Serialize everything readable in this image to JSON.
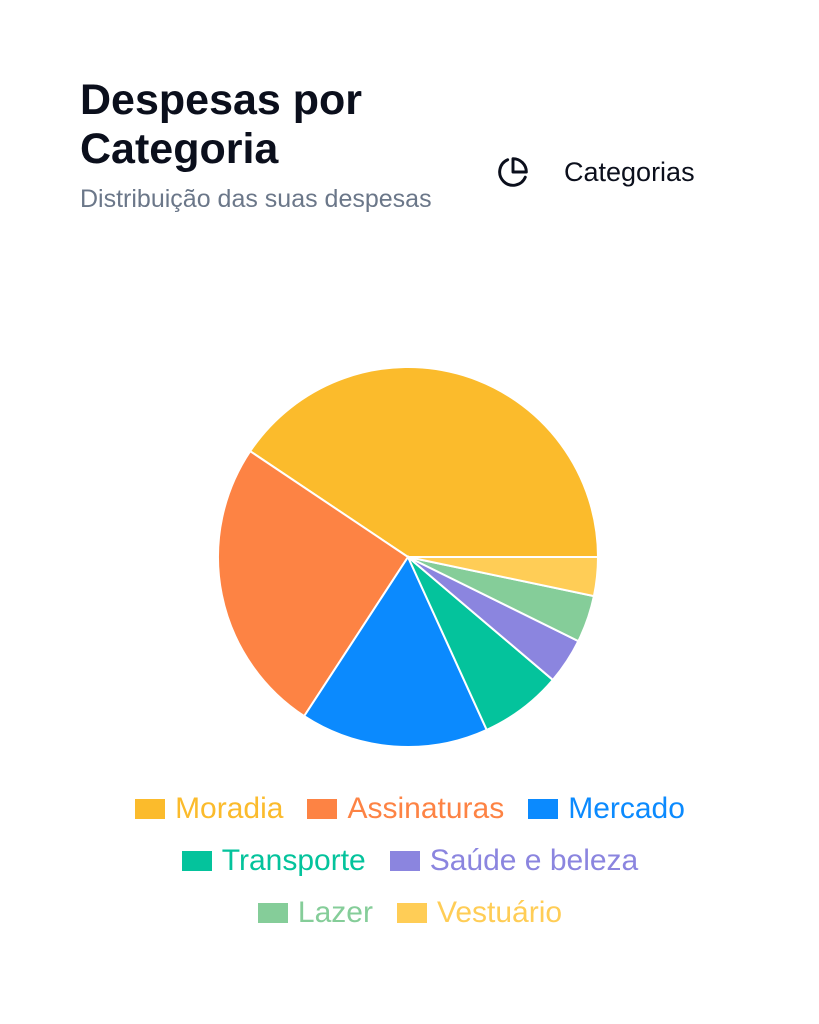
{
  "header": {
    "title": "Despesas por Categoria",
    "subtitle": "Distribuição das suas despesas"
  },
  "toggle": {
    "icon": "pie-chart-icon",
    "label": "Categorias"
  },
  "chart_data": {
    "type": "pie",
    "title": "",
    "categories": [
      "Moradia",
      "Assinaturas",
      "Mercado",
      "Transporte",
      "Saúde e beleza",
      "Lazer",
      "Vestuário"
    ],
    "values": [
      40.6,
      25.2,
      16.0,
      7.0,
      3.9,
      4.0,
      3.3
    ],
    "colors": [
      "#fbbb2c",
      "#fd8344",
      "#0b8afe",
      "#04c39c",
      "#8b85df",
      "#85cd99",
      "#ffcd56"
    ],
    "legend_placement": "bottom"
  }
}
